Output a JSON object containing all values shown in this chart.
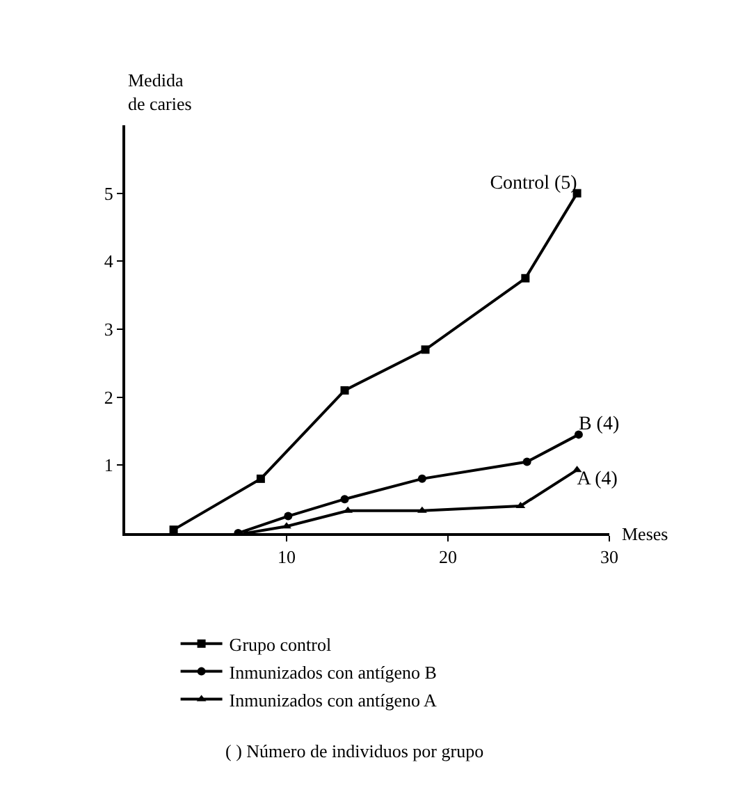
{
  "chart_data": {
    "type": "line",
    "xlabel": "Meses",
    "ylabel": "Medida\nde caries",
    "xlim": [
      0,
      30
    ],
    "xticks": [
      10,
      20,
      30
    ],
    "ylim": [
      0,
      6
    ],
    "yticks": [
      1,
      2,
      3,
      4,
      5
    ],
    "grid": false,
    "legend": "bottom",
    "line_style": "solid",
    "series": [
      {
        "name": "Grupo control",
        "color": "#000000",
        "marker": "square",
        "x": [
          3,
          8.4,
          13.6,
          18.6,
          24.8,
          28
        ],
        "values": [
          0.05,
          0.8,
          2.1,
          2.7,
          3.75,
          5
        ]
      },
      {
        "name": "Inmunizados con antígeno B",
        "color": "#000000",
        "marker": "circle",
        "x": [
          7,
          10.1,
          13.6,
          18.4,
          24.9,
          28.1
        ],
        "values": [
          0,
          0.25,
          0.5,
          0.8,
          1.05,
          1.45
        ]
      },
      {
        "name": "Inmunizados con antígeno A",
        "color": "#000000",
        "marker": "triangle",
        "x": [
          7.5,
          10,
          13.8,
          18.4,
          24.5,
          28
        ],
        "values": [
          0,
          0.1,
          0.33,
          0.33,
          0.4,
          0.93
        ]
      }
    ],
    "annotations": [
      "Control (5)",
      "B (4)",
      "A (4)",
      "( ) Número de individuos por grupo"
    ]
  }
}
